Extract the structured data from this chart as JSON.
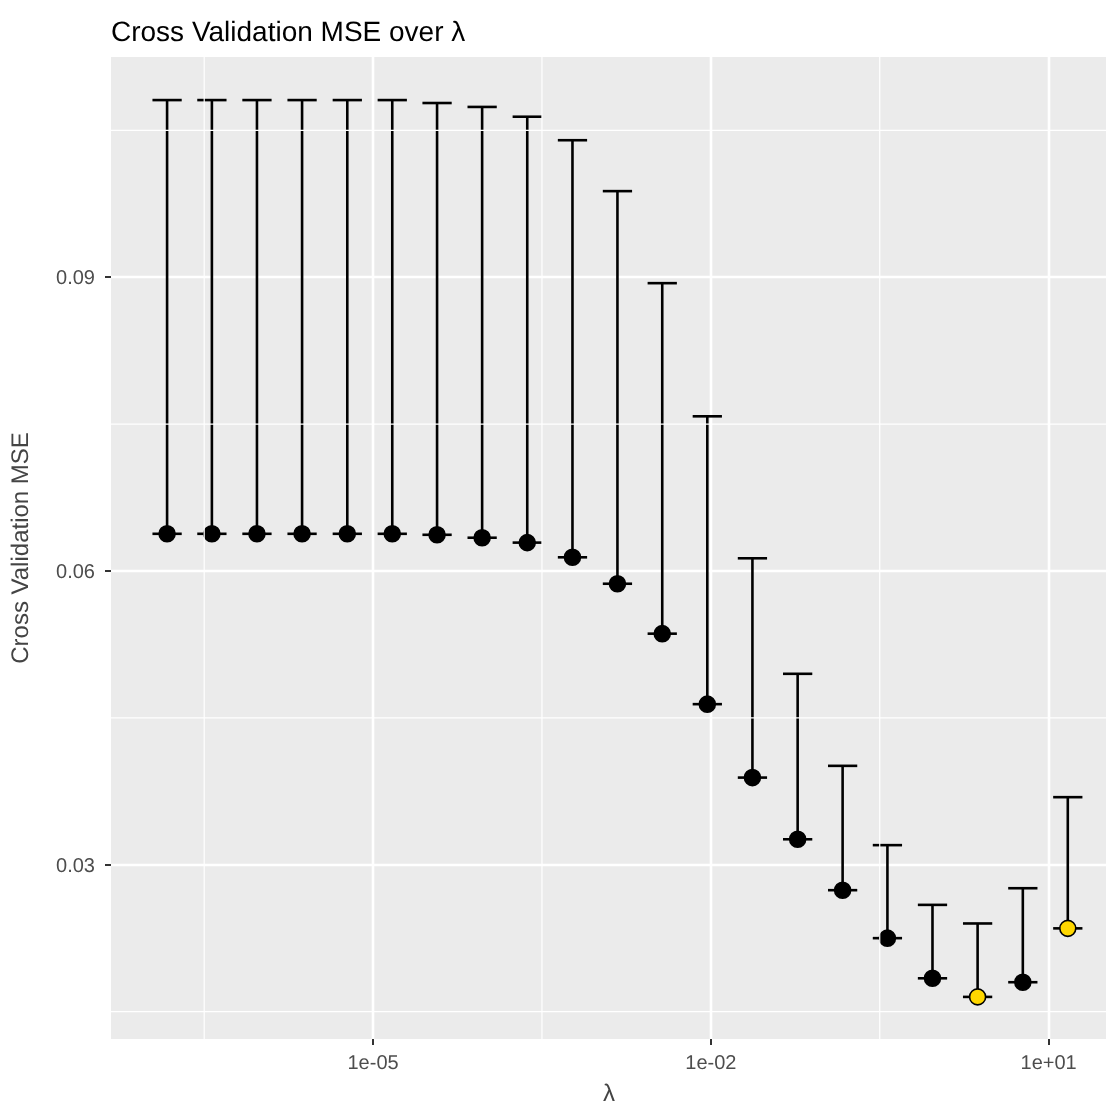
{
  "chart_data": {
    "type": "scatter",
    "title": "Cross Validation MSE over  λ",
    "xlabel": "λ",
    "ylabel": "Cross Validation MSE",
    "x": [
      1.48e-07,
      3.7e-07,
      9.3e-07,
      2.34e-06,
      5.9e-06,
      1.48e-05,
      3.7e-05,
      9.3e-05,
      0.000234,
      0.00059,
      0.00148,
      0.0037,
      0.0093,
      0.0234,
      0.059,
      0.148,
      0.37,
      0.93,
      2.34,
      5.9,
      14.8
    ],
    "values": [
      0.0638,
      0.0638,
      0.0638,
      0.0638,
      0.0638,
      0.0638,
      0.0637,
      0.0634,
      0.0629,
      0.0614,
      0.0587,
      0.0536,
      0.0464,
      0.0389,
      0.0326,
      0.0274,
      0.0225,
      0.0184,
      0.0165,
      0.018,
      0.0235
    ],
    "errors": [
      [
        0.0638,
        0.1081
      ],
      [
        0.0638,
        0.1081
      ],
      [
        0.0638,
        0.1081
      ],
      [
        0.0638,
        0.1081
      ],
      [
        0.0638,
        0.1081
      ],
      [
        0.0638,
        0.1081
      ],
      [
        0.0637,
        0.1078
      ],
      [
        0.0634,
        0.1074
      ],
      [
        0.0629,
        0.1064
      ],
      [
        0.0614,
        0.104
      ],
      [
        0.0587,
        0.0988
      ],
      [
        0.0536,
        0.0894
      ],
      [
        0.0464,
        0.0758
      ],
      [
        0.0389,
        0.0613
      ],
      [
        0.0326,
        0.0495
      ],
      [
        0.0274,
        0.0401
      ],
      [
        0.0225,
        0.032
      ],
      [
        0.0184,
        0.0259
      ],
      [
        0.0165,
        0.024
      ],
      [
        0.018,
        0.0276
      ],
      [
        0.0235,
        0.0369
      ]
    ],
    "colors": [
      "#000000",
      "#000000",
      "#000000",
      "#000000",
      "#000000",
      "#000000",
      "#000000",
      "#000000",
      "#000000",
      "#000000",
      "#000000",
      "#000000",
      "#000000",
      "#000000",
      "#000000",
      "#000000",
      "#000000",
      "#000000",
      "#ffd700",
      "#000000",
      "#ffd700"
    ],
    "xlim": [
      4.7e-08,
      33
    ],
    "ylim": [
      0.0122,
      0.1125
    ],
    "xticks": [
      {
        "value": 1e-05,
        "label": "1e-05"
      },
      {
        "value": 0.01,
        "label": "1e-02"
      },
      {
        "value": 10,
        "label": "1e+01"
      }
    ],
    "yticks": [
      {
        "value": 0.03,
        "label": "0.03"
      },
      {
        "value": 0.06,
        "label": "0.06"
      },
      {
        "value": 0.09,
        "label": "0.09"
      }
    ],
    "grid": true,
    "marker": "circle",
    "log": "x"
  }
}
